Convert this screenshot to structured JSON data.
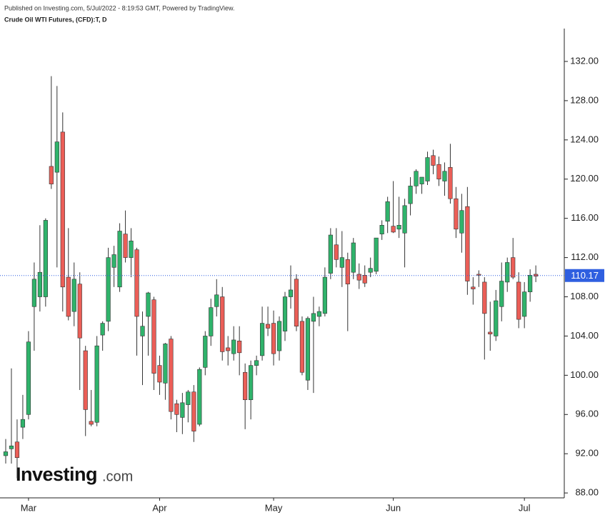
{
  "header": {
    "published": "Published on Investing.com, 5/Jul/2022 - 8:19:53 GMT, Powered by TradingView."
  },
  "watermark": {
    "brand": "Investing",
    "suffix": ".com"
  },
  "chart_data": {
    "type": "candlestick",
    "title": "Crude Oil WTI Futures, (CFD):T, D",
    "categories": [
      null,
      null,
      null,
      null,
      "Mar",
      null,
      null,
      null,
      null,
      null,
      null,
      null,
      null,
      null,
      null,
      null,
      null,
      null,
      null,
      null,
      null,
      null,
      null,
      null,
      null,
      null,
      null,
      "Apr",
      null,
      null,
      null,
      null,
      null,
      null,
      null,
      null,
      null,
      null,
      null,
      null,
      null,
      null,
      null,
      null,
      null,
      null,
      null,
      "May",
      null,
      null,
      null,
      null,
      null,
      null,
      null,
      null,
      null,
      null,
      null,
      null,
      null,
      null,
      null,
      null,
      null,
      null,
      null,
      null,
      "Jun",
      null,
      null,
      null,
      null,
      null,
      null,
      null,
      null,
      null,
      null,
      null,
      null,
      null,
      null,
      null,
      null,
      null,
      null,
      null,
      null,
      null,
      null,
      "Jul",
      null,
      null
    ],
    "open": [
      91.8,
      92.5,
      93.2,
      94.7,
      96,
      107,
      108,
      108,
      121.3,
      120.7,
      124.8,
      110,
      106.5,
      109.3,
      102.5,
      95.3,
      95.2,
      104.1,
      105.5,
      111,
      109,
      114.4,
      112,
      112.8,
      104,
      106,
      107.7,
      101,
      99.2,
      103.7,
      97.1,
      95.7,
      97,
      98.3,
      95,
      100.8,
      104,
      107,
      108,
      102.8,
      102.2,
      103.5,
      100.3,
      97.5,
      101,
      102,
      105.2,
      105.3,
      102.5,
      104.5,
      108,
      109.8,
      105.5,
      99.5,
      105.5,
      106,
      106.3,
      110.4,
      113.3,
      111,
      111.8,
      110.5,
      110.3,
      110.2,
      110.5,
      110.6,
      114.4,
      115.7,
      115.2,
      114.9,
      114.5,
      117.5,
      119.3,
      119.5,
      119.8,
      122.4,
      121.5,
      119.8,
      121.2,
      118,
      114.5,
      117.2,
      109,
      110.3,
      109.5,
      104.4,
      104,
      107,
      109.5,
      112,
      109.5,
      106,
      108.5,
      110.3
    ],
    "high": [
      93.5,
      100.7,
      95.5,
      98,
      104.5,
      111.5,
      115.3,
      116,
      130.5,
      129.5,
      126.8,
      115,
      111.5,
      110.5,
      103,
      98.5,
      104,
      105.5,
      113,
      113.2,
      115.5,
      116.8,
      115,
      113,
      106.5,
      108.5,
      108,
      102,
      103.3,
      104,
      97.5,
      98.2,
      98.5,
      99,
      100.8,
      104.5,
      107.8,
      109.8,
      109,
      104,
      105,
      105,
      101.2,
      101.5,
      102,
      107,
      107,
      106.6,
      106,
      108.5,
      111.2,
      110.3,
      106,
      106,
      108,
      107,
      111,
      115,
      115,
      114.7,
      112.5,
      114,
      111.4,
      111.2,
      112,
      114,
      115.8,
      118.2,
      119.8,
      118.2,
      118,
      120.2,
      121,
      120,
      122.8,
      123,
      122.3,
      121.7,
      123.6,
      119.2,
      118.5,
      119.2,
      110,
      110.7,
      110,
      107.5,
      108.7,
      111.5,
      112,
      114,
      110.5,
      109.5,
      110.8,
      111.2
    ],
    "low": [
      91,
      91,
      89.5,
      93.5,
      95.5,
      102.5,
      106.5,
      107,
      119,
      111,
      106.5,
      105.6,
      105,
      98.5,
      93.8,
      94.8,
      94.8,
      102.5,
      104.5,
      109,
      108.5,
      111.5,
      110,
      102,
      99,
      102,
      98.5,
      98,
      97.5,
      95.5,
      94.2,
      94,
      95.2,
      93.2,
      94.8,
      100,
      103,
      106,
      101.5,
      101,
      101.5,
      100,
      94.5,
      95.5,
      100,
      101.5,
      104,
      101,
      101.5,
      103.5,
      106.8,
      104.5,
      100,
      98.5,
      98.2,
      105,
      106,
      109.8,
      111,
      109,
      104.5,
      109.8,
      108.8,
      109,
      110,
      110.3,
      113.8,
      114.5,
      114.5,
      114,
      111,
      116.3,
      118.5,
      118.5,
      119.4,
      120.5,
      119.3,
      118.3,
      117.5,
      114,
      112.5,
      108.2,
      107.2,
      109,
      101.6,
      102.5,
      103.5,
      105.5,
      108.5,
      109.8,
      104.8,
      104.8,
      107.5,
      109.5
    ],
    "close": [
      92.2,
      92.8,
      91.6,
      95.5,
      103.4,
      109.8,
      110.5,
      115.8,
      119.5,
      123.8,
      109,
      106,
      109.8,
      103.8,
      96.5,
      95,
      103,
      105.3,
      112,
      112.3,
      114.7,
      112,
      113.7,
      106,
      105,
      108.4,
      100.2,
      99.3,
      103.2,
      96.3,
      96,
      97.2,
      98.3,
      94.3,
      100.6,
      104,
      106.9,
      108.2,
      102.4,
      102.5,
      103.6,
      102.3,
      97.5,
      101,
      101.5,
      105.3,
      104.8,
      102.2,
      105.5,
      108,
      108.7,
      105,
      100.3,
      105.8,
      106.3,
      106.5,
      110,
      114.3,
      111.8,
      112,
      109.3,
      113.5,
      109.7,
      109.4,
      110.9,
      114,
      115.3,
      117.7,
      114.6,
      115.3,
      117.3,
      119.3,
      120.8,
      120.2,
      122.2,
      121.4,
      120,
      120.8,
      118,
      114.9,
      116.8,
      109.6,
      108.8,
      110.2,
      106.3,
      104.2,
      107.6,
      109.6,
      111.5,
      110,
      105.7,
      108.5,
      110.2,
      110.1
    ],
    "up_color": "#2fb36b",
    "down_color": "#eb5e57",
    "wick_color": "#333333",
    "last_price": 110.17,
    "last_price_color": "#2f5fe0",
    "ylim": [
      87.5,
      135.35
    ],
    "yticks": [
      {
        "value": 88,
        "label": "88.00"
      },
      {
        "value": 92,
        "label": "92.00"
      },
      {
        "value": 96,
        "label": "96.00"
      },
      {
        "value": 100,
        "label": "100.00"
      },
      {
        "value": 104,
        "label": "104.00"
      },
      {
        "value": 108,
        "label": "108.00"
      },
      {
        "value": 112,
        "label": "112.00"
      },
      {
        "value": 116,
        "label": "116.00"
      },
      {
        "value": 120,
        "label": "120.00"
      },
      {
        "value": 124,
        "label": "124.00"
      },
      {
        "value": 128,
        "label": "128.00"
      },
      {
        "value": 132,
        "label": "132.00"
      }
    ]
  }
}
